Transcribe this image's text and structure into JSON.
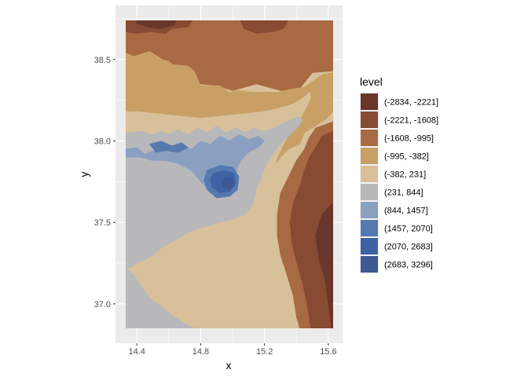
{
  "chart_data": {
    "type": "heatmap",
    "subtype": "filled-contour",
    "title": "",
    "xlabel": "x",
    "ylabel": "y",
    "xlim": [
      14.33,
      15.63
    ],
    "ylim": [
      36.85,
      38.74
    ],
    "x_ticks": [
      14.4,
      14.8,
      15.2,
      15.6
    ],
    "x_tick_labels": [
      "14.4",
      "14.8",
      "15.2",
      "15.6"
    ],
    "y_ticks": [
      37.0,
      37.5,
      38.0,
      38.5
    ],
    "y_tick_labels": [
      "37.0",
      "37.5",
      "38.0",
      "38.5"
    ],
    "grid": true,
    "panel_background": "#ebebeb",
    "grid_color": "#ffffff",
    "legend": {
      "title": "level",
      "position": "right",
      "levels": [
        {
          "label": "(-2834, -2221]",
          "color": "#68362a"
        },
        {
          "label": "(-2221, -1608]",
          "color": "#874a32"
        },
        {
          "label": "(-1608, -995]",
          "color": "#a86a43"
        },
        {
          "label": "(-995, -382]",
          "color": "#c8a065"
        },
        {
          "label": "(-382, 231]",
          "color": "#d8c09a"
        },
        {
          "label": "(231, 844]",
          "color": "#b8b8bb"
        },
        {
          "label": "(844, 1457]",
          "color": "#8ba0c0"
        },
        {
          "label": "(1457, 2070]",
          "color": "#5679af"
        },
        {
          "label": "(2070, 2683]",
          "color": "#3e62a2"
        },
        {
          "label": "(2683, 3296]",
          "color": "#3d5892"
        }
      ]
    },
    "regions": [
      {
        "level": 2,
        "points": [
          [
            14.33,
            38.74
          ],
          [
            15.63,
            38.74
          ],
          [
            15.63,
            38.43
          ],
          [
            15.5,
            38.42
          ],
          [
            15.42,
            38.32
          ],
          [
            15.3,
            38.31
          ],
          [
            15.15,
            38.35
          ],
          [
            15.0,
            38.31
          ],
          [
            14.9,
            38.34
          ],
          [
            14.8,
            38.35
          ],
          [
            14.7,
            38.33
          ],
          [
            14.6,
            38.34
          ],
          [
            14.45,
            38.33
          ],
          [
            14.33,
            38.35
          ]
        ]
      },
      {
        "level": 1,
        "points": [
          [
            14.33,
            38.74
          ],
          [
            14.75,
            38.74
          ],
          [
            14.72,
            38.7
          ],
          [
            14.62,
            38.69
          ],
          [
            14.58,
            38.66
          ],
          [
            14.48,
            38.67
          ],
          [
            14.4,
            38.66
          ],
          [
            14.33,
            38.67
          ]
        ]
      },
      {
        "level": 0,
        "points": [
          [
            14.4,
            38.74
          ],
          [
            14.65,
            38.74
          ],
          [
            14.63,
            38.71
          ],
          [
            14.55,
            38.69
          ],
          [
            14.47,
            38.7
          ],
          [
            14.4,
            38.72
          ]
        ]
      },
      {
        "level": 1,
        "points": [
          [
            15.05,
            38.74
          ],
          [
            15.35,
            38.74
          ],
          [
            15.32,
            38.69
          ],
          [
            15.25,
            38.67
          ],
          [
            15.15,
            38.66
          ],
          [
            15.07,
            38.69
          ]
        ]
      },
      {
        "level": 3,
        "points": [
          [
            14.33,
            38.54
          ],
          [
            14.38,
            38.52
          ],
          [
            14.48,
            38.55
          ],
          [
            14.56,
            38.5
          ],
          [
            14.6,
            38.49
          ],
          [
            14.62,
            38.47
          ],
          [
            14.72,
            38.46
          ],
          [
            14.76,
            38.43
          ],
          [
            14.78,
            38.38
          ],
          [
            14.8,
            38.34
          ],
          [
            14.92,
            38.34
          ],
          [
            14.98,
            38.3
          ],
          [
            15.03,
            38.31
          ],
          [
            15.12,
            38.3
          ],
          [
            15.28,
            38.3
          ],
          [
            15.38,
            38.32
          ],
          [
            15.45,
            38.33
          ],
          [
            15.52,
            38.38
          ],
          [
            15.57,
            38.41
          ],
          [
            15.63,
            38.42
          ],
          [
            15.63,
            38.18
          ],
          [
            15.58,
            38.13
          ],
          [
            15.5,
            38.08
          ],
          [
            15.45,
            38.05
          ],
          [
            15.42,
            37.98
          ],
          [
            15.35,
            37.95
          ],
          [
            15.3,
            37.9
          ],
          [
            15.25,
            37.83
          ],
          [
            15.2,
            37.75
          ],
          [
            15.16,
            37.68
          ],
          [
            15.1,
            37.7
          ],
          [
            15.0,
            37.73
          ],
          [
            14.9,
            37.75
          ],
          [
            14.8,
            37.75
          ],
          [
            14.7,
            37.75
          ],
          [
            14.6,
            37.76
          ],
          [
            14.5,
            37.78
          ],
          [
            14.4,
            37.78
          ],
          [
            14.33,
            37.78
          ]
        ]
      },
      {
        "level": 4,
        "points": [
          [
            14.33,
            38.18
          ],
          [
            14.4,
            38.18
          ],
          [
            14.5,
            38.17
          ],
          [
            14.6,
            38.16
          ],
          [
            14.7,
            38.15
          ],
          [
            14.8,
            38.14
          ],
          [
            14.9,
            38.15
          ],
          [
            15.0,
            38.16
          ],
          [
            15.1,
            38.17
          ],
          [
            15.2,
            38.18
          ],
          [
            15.28,
            38.2
          ],
          [
            15.36,
            38.22
          ],
          [
            15.42,
            38.25
          ],
          [
            15.46,
            38.28
          ],
          [
            15.48,
            38.3
          ],
          [
            15.49,
            38.27
          ],
          [
            15.47,
            38.22
          ],
          [
            15.43,
            38.15
          ],
          [
            15.4,
            38.1
          ],
          [
            15.36,
            38.05
          ],
          [
            15.32,
            37.98
          ],
          [
            15.28,
            37.9
          ],
          [
            15.26,
            37.82
          ],
          [
            15.24,
            37.73
          ],
          [
            15.22,
            37.62
          ],
          [
            15.21,
            37.5
          ],
          [
            15.22,
            37.4
          ],
          [
            15.26,
            37.3
          ],
          [
            15.3,
            37.2
          ],
          [
            15.33,
            37.1
          ],
          [
            15.35,
            37.0
          ],
          [
            15.36,
            36.93
          ],
          [
            15.37,
            36.85
          ],
          [
            14.33,
            36.85
          ]
        ]
      },
      {
        "level": 5,
        "points": [
          [
            14.33,
            38.05
          ],
          [
            14.42,
            38.06
          ],
          [
            14.5,
            38.04
          ],
          [
            14.55,
            38.06
          ],
          [
            14.6,
            38.04
          ],
          [
            14.66,
            38.07
          ],
          [
            14.72,
            38.04
          ],
          [
            14.78,
            38.08
          ],
          [
            14.84,
            38.05
          ],
          [
            14.9,
            38.09
          ],
          [
            14.96,
            38.05
          ],
          [
            15.02,
            38.08
          ],
          [
            15.08,
            38.05
          ],
          [
            15.13,
            38.08
          ],
          [
            15.18,
            38.06
          ],
          [
            15.24,
            38.07
          ],
          [
            15.3,
            38.1
          ],
          [
            15.36,
            38.13
          ],
          [
            15.41,
            38.15
          ],
          [
            15.44,
            38.13
          ],
          [
            15.4,
            38.08
          ],
          [
            15.34,
            38.02
          ],
          [
            15.28,
            37.96
          ],
          [
            15.24,
            37.9
          ],
          [
            15.2,
            37.83
          ],
          [
            15.18,
            37.77
          ],
          [
            15.15,
            37.72
          ],
          [
            15.14,
            37.66
          ],
          [
            15.12,
            37.6
          ],
          [
            15.08,
            37.55
          ],
          [
            15.0,
            37.52
          ],
          [
            14.92,
            37.5
          ],
          [
            14.85,
            37.48
          ],
          [
            14.78,
            37.46
          ],
          [
            14.72,
            37.44
          ],
          [
            14.66,
            37.4
          ],
          [
            14.6,
            37.37
          ],
          [
            14.55,
            37.34
          ],
          [
            14.5,
            37.3
          ],
          [
            14.45,
            37.27
          ],
          [
            14.4,
            37.25
          ],
          [
            14.36,
            37.22
          ],
          [
            14.33,
            37.22
          ]
        ]
      },
      {
        "level": 5,
        "points": [
          [
            14.33,
            37.22
          ],
          [
            14.38,
            37.18
          ],
          [
            14.42,
            37.12
          ],
          [
            14.46,
            37.06
          ],
          [
            14.5,
            37.02
          ],
          [
            14.56,
            36.98
          ],
          [
            14.62,
            36.93
          ],
          [
            14.7,
            36.88
          ],
          [
            14.76,
            36.85
          ],
          [
            14.33,
            36.85
          ]
        ]
      },
      {
        "level": 6,
        "points": [
          [
            14.33,
            37.95
          ],
          [
            14.4,
            37.96
          ],
          [
            14.45,
            37.92
          ],
          [
            14.52,
            37.95
          ],
          [
            14.6,
            37.93
          ],
          [
            14.67,
            37.97
          ],
          [
            14.74,
            37.95
          ],
          [
            14.8,
            38.0
          ],
          [
            14.86,
            37.98
          ],
          [
            14.92,
            38.03
          ],
          [
            14.98,
            38.0
          ],
          [
            15.04,
            38.04
          ],
          [
            15.1,
            38.01
          ],
          [
            15.16,
            38.03
          ],
          [
            15.2,
            38.0
          ],
          [
            15.16,
            37.96
          ],
          [
            15.1,
            37.93
          ],
          [
            15.05,
            37.88
          ],
          [
            15.02,
            37.8
          ],
          [
            14.98,
            37.72
          ],
          [
            14.92,
            37.68
          ],
          [
            14.85,
            37.7
          ],
          [
            14.8,
            37.75
          ],
          [
            14.74,
            37.82
          ],
          [
            14.66,
            37.86
          ],
          [
            14.58,
            37.88
          ],
          [
            14.5,
            37.88
          ],
          [
            14.42,
            37.9
          ],
          [
            14.33,
            37.9
          ]
        ]
      },
      {
        "level": 7,
        "points": [
          [
            14.48,
            37.98
          ],
          [
            14.55,
            38.0
          ],
          [
            14.62,
            37.97
          ],
          [
            14.68,
            37.99
          ],
          [
            14.72,
            37.96
          ],
          [
            14.66,
            37.93
          ],
          [
            14.58,
            37.94
          ],
          [
            14.52,
            37.93
          ]
        ]
      },
      {
        "level": 7,
        "points": [
          [
            14.84,
            37.82
          ],
          [
            14.92,
            37.85
          ],
          [
            15.0,
            37.84
          ],
          [
            15.04,
            37.78
          ],
          [
            15.03,
            37.7
          ],
          [
            14.98,
            37.66
          ],
          [
            14.9,
            37.65
          ],
          [
            14.84,
            37.7
          ],
          [
            14.82,
            37.76
          ]
        ]
      },
      {
        "level": 8,
        "points": [
          [
            14.88,
            37.8
          ],
          [
            14.95,
            37.82
          ],
          [
            15.01,
            37.8
          ],
          [
            15.02,
            37.74
          ],
          [
            14.98,
            37.69
          ],
          [
            14.92,
            37.68
          ],
          [
            14.87,
            37.72
          ],
          [
            14.86,
            37.77
          ]
        ]
      },
      {
        "level": 9,
        "points": [
          [
            14.96,
            37.78
          ],
          [
            15.0,
            37.77
          ],
          [
            15.01,
            37.73
          ],
          [
            14.98,
            37.71
          ],
          [
            14.94,
            37.72
          ],
          [
            14.94,
            37.76
          ]
        ]
      },
      {
        "level": 2,
        "points": [
          [
            15.63,
            38.12
          ],
          [
            15.52,
            38.08
          ],
          [
            15.48,
            38.02
          ],
          [
            15.45,
            37.95
          ],
          [
            15.4,
            37.88
          ],
          [
            15.35,
            37.78
          ],
          [
            15.3,
            37.68
          ],
          [
            15.28,
            37.55
          ],
          [
            15.28,
            37.42
          ],
          [
            15.3,
            37.3
          ],
          [
            15.34,
            37.18
          ],
          [
            15.38,
            37.05
          ],
          [
            15.4,
            36.92
          ],
          [
            15.42,
            36.85
          ],
          [
            15.63,
            36.85
          ]
        ]
      },
      {
        "level": 1,
        "points": [
          [
            15.63,
            38.06
          ],
          [
            15.56,
            38.03
          ],
          [
            15.52,
            37.96
          ],
          [
            15.48,
            37.9
          ],
          [
            15.45,
            37.82
          ],
          [
            15.42,
            37.72
          ],
          [
            15.38,
            37.62
          ],
          [
            15.36,
            37.5
          ],
          [
            15.37,
            37.38
          ],
          [
            15.4,
            37.26
          ],
          [
            15.44,
            37.12
          ],
          [
            15.47,
            36.98
          ],
          [
            15.49,
            36.85
          ],
          [
            15.63,
            36.85
          ]
        ]
      },
      {
        "level": 0,
        "points": [
          [
            15.63,
            37.62
          ],
          [
            15.56,
            37.55
          ],
          [
            15.52,
            37.42
          ],
          [
            15.54,
            37.28
          ],
          [
            15.58,
            37.15
          ],
          [
            15.6,
            37.0
          ],
          [
            15.62,
            36.85
          ],
          [
            15.63,
            36.85
          ]
        ]
      }
    ]
  }
}
